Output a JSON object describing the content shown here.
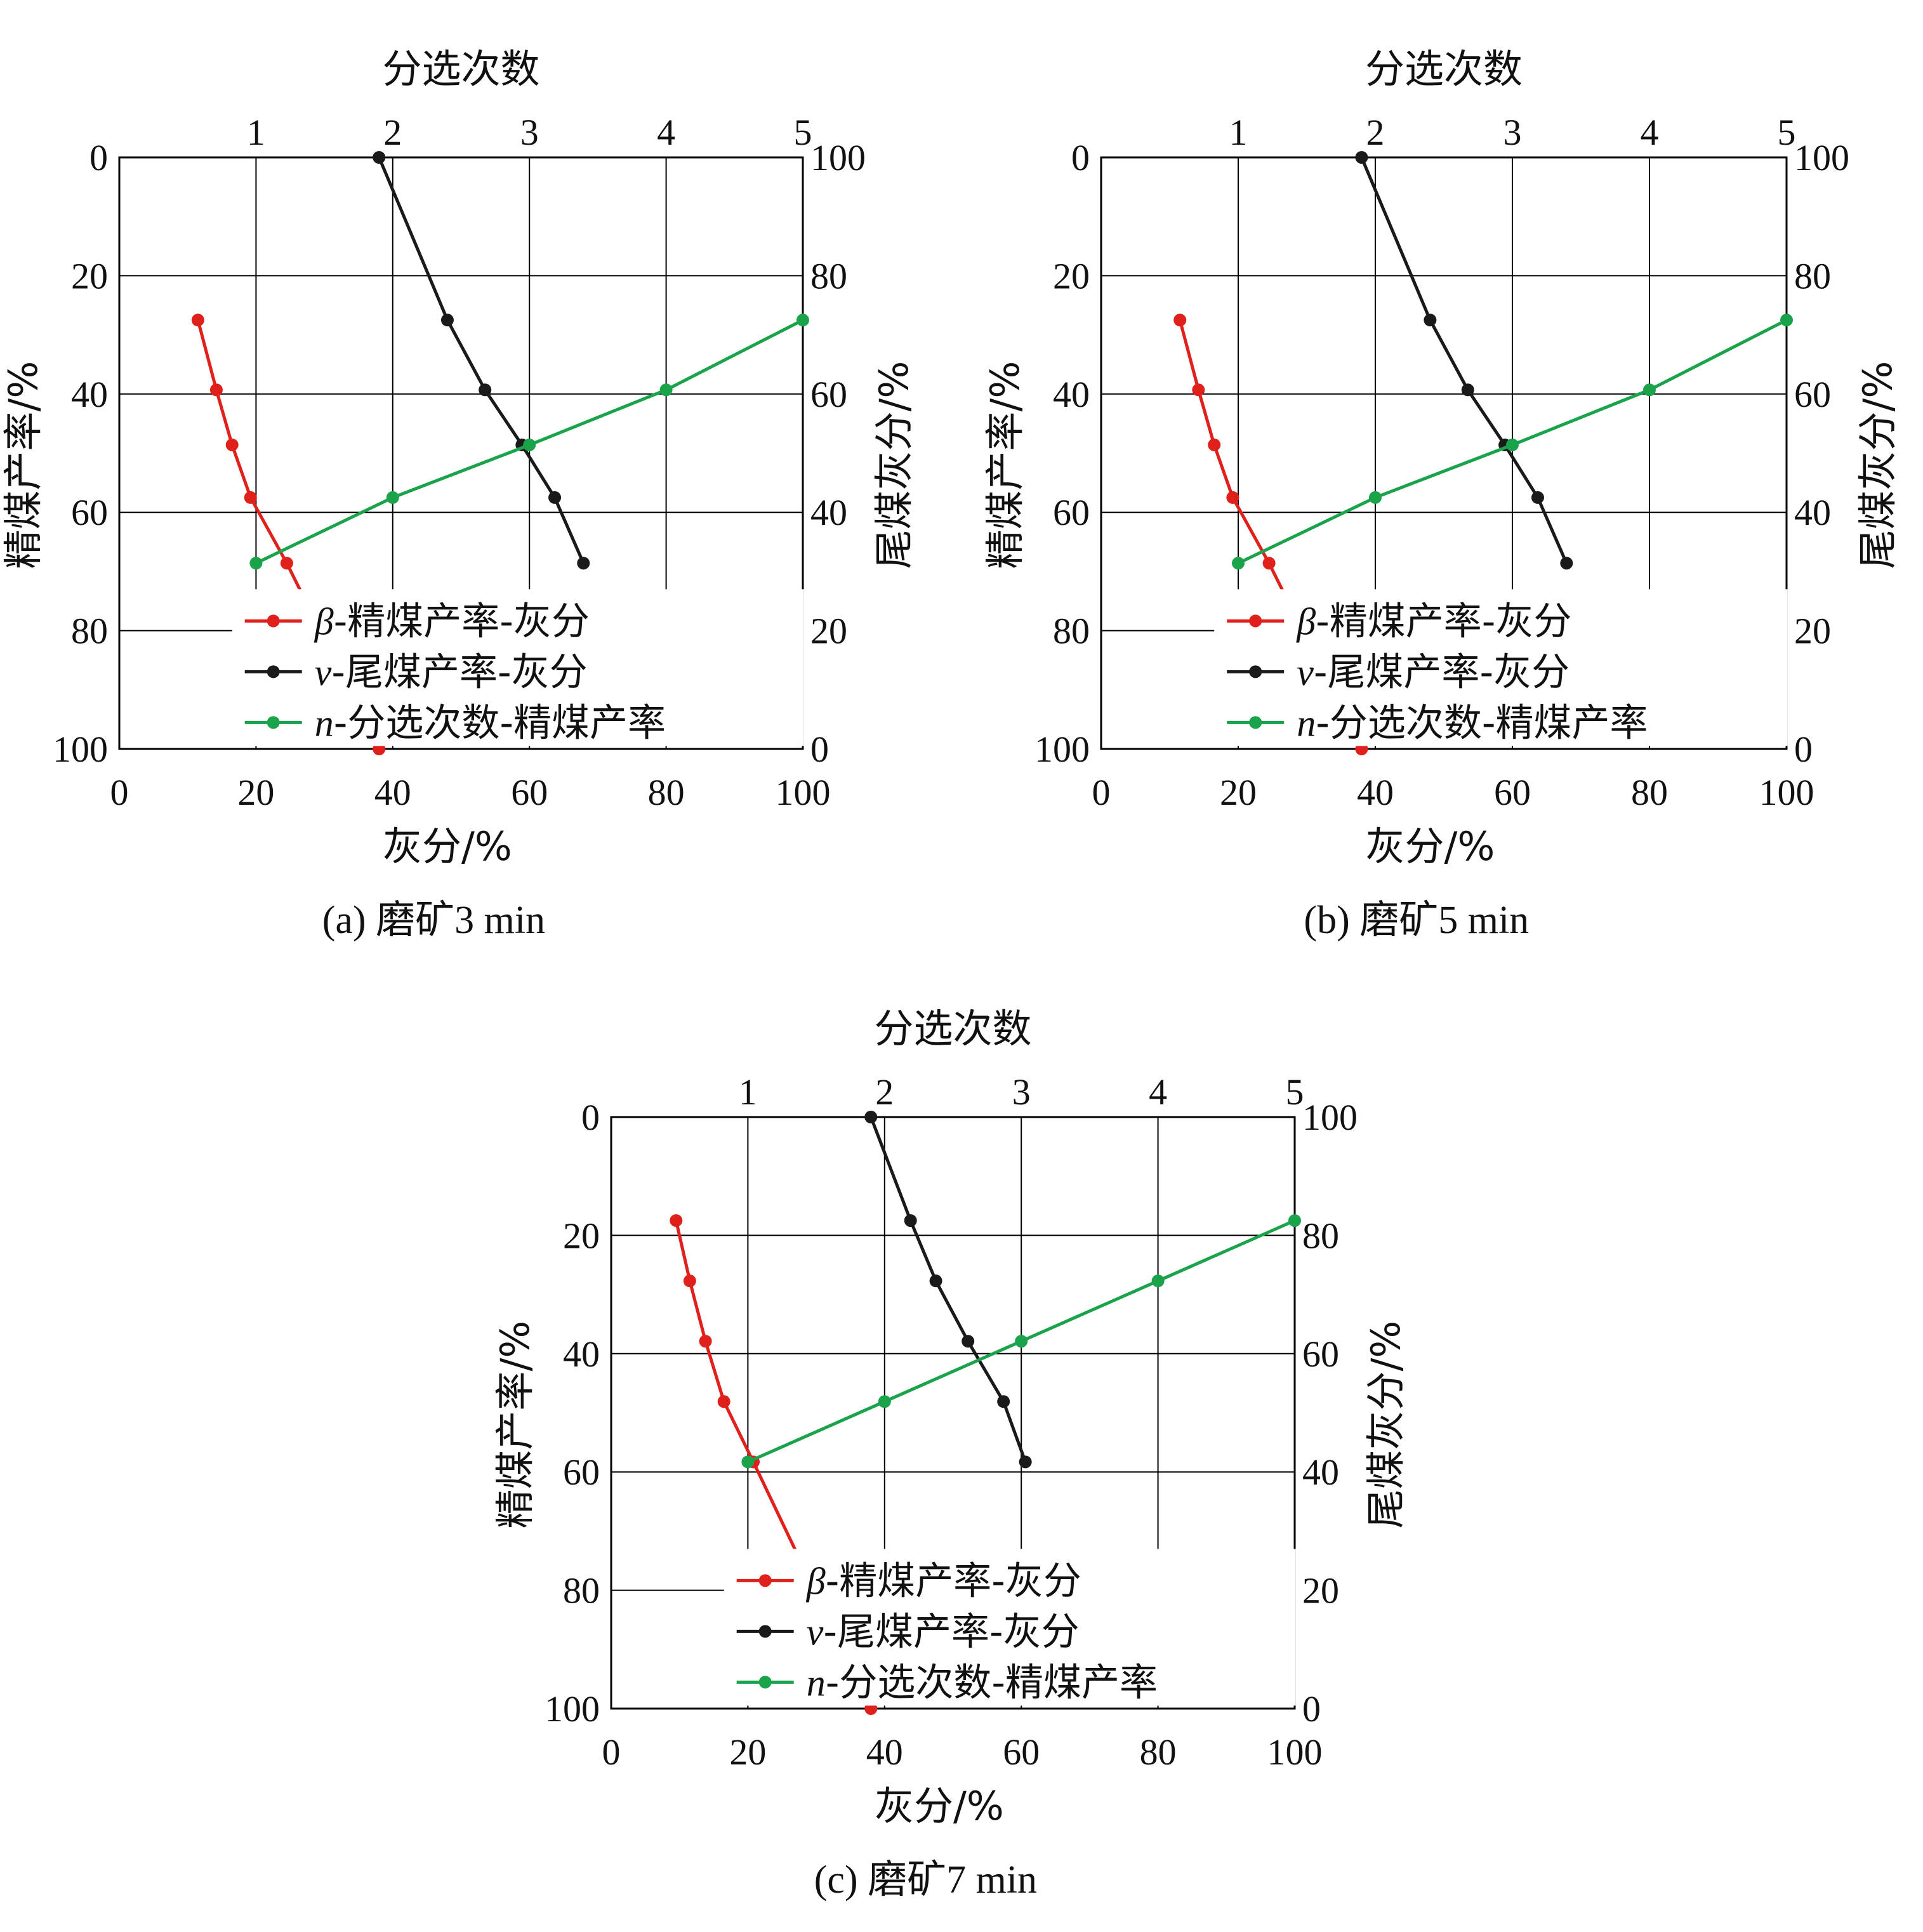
{
  "colors": {
    "beta": "#e0201b",
    "v": "#1a1a1a",
    "n": "#1aa34a",
    "grid": "#000000"
  },
  "chart_data": [
    {
      "type": "line",
      "caption": "(a) 磨矿3 min",
      "xlabel": "灰分/%",
      "ylabel_left": "精煤产率/%",
      "ylabel_right": "尾煤灰分/%",
      "x2label": "分选次数",
      "x_ticks": [
        "0",
        "20",
        "40",
        "60",
        "80",
        "100"
      ],
      "x2_ticks": [
        "1",
        "2",
        "3",
        "4",
        "5"
      ],
      "y_left_ticks": [
        "0",
        "20",
        "40",
        "60",
        "80",
        "100"
      ],
      "y_right_ticks": [
        "100",
        "80",
        "60",
        "40",
        "20",
        "0"
      ],
      "xlim": [
        0,
        100
      ],
      "ylim_left": [
        0,
        100
      ],
      "x2lim": [
        0,
        5
      ],
      "ylim_right": [
        0,
        100
      ],
      "grid": true,
      "legend": [
        {
          "prefix": "β",
          "label": "-精煤产率-灰分"
        },
        {
          "prefix": "v",
          "label": "-尾煤产率-灰分"
        },
        {
          "prefix": "n",
          "label": "-分选次数-精煤产率"
        }
      ],
      "series": [
        {
          "key": "beta",
          "axis": "bottom-left",
          "points": [
            [
              11.5,
              27.5
            ],
            [
              14.2,
              39.3
            ],
            [
              16.5,
              48.6
            ],
            [
              19.2,
              57.5
            ],
            [
              24.5,
              68.6
            ],
            [
              38,
              100
            ]
          ]
        },
        {
          "key": "v",
          "axis": "bottom-left",
          "points": [
            [
              38,
              0
            ],
            [
              48,
              27.5
            ],
            [
              53.5,
              39.3
            ],
            [
              58.9,
              48.6
            ],
            [
              63.7,
              57.5
            ],
            [
              67.9,
              68.6
            ]
          ]
        },
        {
          "key": "n",
          "axis": "top-right",
          "points": [
            [
              1,
              31.4
            ],
            [
              2,
              42.5
            ],
            [
              3,
              51.4
            ],
            [
              4,
              60.7
            ],
            [
              5,
              72.5
            ]
          ]
        }
      ]
    },
    {
      "type": "line",
      "caption": "(b) 磨矿5 min",
      "xlabel": "灰分/%",
      "ylabel_left": "精煤产率/%",
      "ylabel_right": "尾煤灰分/%",
      "x2label": "分选次数",
      "x_ticks": [
        "0",
        "20",
        "40",
        "60",
        "80",
        "100"
      ],
      "x2_ticks": [
        "1",
        "2",
        "3",
        "4",
        "5"
      ],
      "y_left_ticks": [
        "0",
        "20",
        "40",
        "60",
        "80",
        "100"
      ],
      "y_right_ticks": [
        "100",
        "80",
        "60",
        "40",
        "20",
        "0"
      ],
      "xlim": [
        0,
        100
      ],
      "ylim_left": [
        0,
        100
      ],
      "x2lim": [
        0,
        5
      ],
      "ylim_right": [
        0,
        100
      ],
      "grid": true,
      "legend": [
        {
          "prefix": "β",
          "label": "-精煤产率-灰分"
        },
        {
          "prefix": "v",
          "label": "-尾煤产率-灰分"
        },
        {
          "prefix": "n",
          "label": "-分选次数-精煤产率"
        }
      ],
      "series": [
        {
          "key": "beta",
          "axis": "bottom-left",
          "points": [
            [
              11.5,
              27.5
            ],
            [
              14.2,
              39.3
            ],
            [
              16.5,
              48.6
            ],
            [
              19.2,
              57.5
            ],
            [
              24.5,
              68.6
            ],
            [
              38,
              100
            ]
          ]
        },
        {
          "key": "v",
          "axis": "bottom-left",
          "points": [
            [
              38,
              0
            ],
            [
              48,
              27.5
            ],
            [
              53.5,
              39.3
            ],
            [
              58.9,
              48.6
            ],
            [
              63.7,
              57.5
            ],
            [
              67.9,
              68.6
            ]
          ]
        },
        {
          "key": "n",
          "axis": "top-right",
          "points": [
            [
              1,
              31.4
            ],
            [
              2,
              42.5
            ],
            [
              3,
              51.4
            ],
            [
              4,
              60.7
            ],
            [
              5,
              72.5
            ]
          ]
        }
      ]
    },
    {
      "type": "line",
      "caption": "(c) 磨矿7 min",
      "xlabel": "灰分/%",
      "ylabel_left": "精煤产率/%",
      "ylabel_right": "尾煤灰分/%",
      "x2label": "分选次数",
      "x_ticks": [
        "0",
        "20",
        "40",
        "60",
        "80",
        "100"
      ],
      "x2_ticks": [
        "1",
        "2",
        "3",
        "4",
        "5"
      ],
      "y_left_ticks": [
        "0",
        "20",
        "40",
        "60",
        "80",
        "100"
      ],
      "y_right_ticks": [
        "100",
        "80",
        "60",
        "40",
        "20",
        "0"
      ],
      "xlim": [
        0,
        100
      ],
      "ylim_left": [
        0,
        100
      ],
      "x2lim": [
        0,
        5
      ],
      "ylim_right": [
        0,
        100
      ],
      "grid": true,
      "legend": [
        {
          "prefix": "β",
          "label": "-精煤产率-灰分"
        },
        {
          "prefix": "v",
          "label": "-尾煤产率-灰分"
        },
        {
          "prefix": "n",
          "label": "-分选次数-精煤产率"
        }
      ],
      "series": [
        {
          "key": "beta",
          "axis": "bottom-left",
          "points": [
            [
              9.5,
              17.5
            ],
            [
              11.5,
              27.7
            ],
            [
              13.8,
              37.9
            ],
            [
              16.5,
              48.1
            ],
            [
              20.8,
              58.3
            ],
            [
              38,
              100
            ]
          ]
        },
        {
          "key": "v",
          "axis": "bottom-left",
          "points": [
            [
              38,
              0
            ],
            [
              43.8,
              17.5
            ],
            [
              47.5,
              27.7
            ],
            [
              52.2,
              37.9
            ],
            [
              57.4,
              48.1
            ],
            [
              60.6,
              58.3
            ]
          ]
        },
        {
          "key": "n",
          "axis": "top-right",
          "points": [
            [
              1,
              41.7
            ],
            [
              2,
              51.9
            ],
            [
              3,
              62.1
            ],
            [
              4,
              72.3
            ],
            [
              5,
              82.5
            ]
          ]
        }
      ]
    }
  ]
}
